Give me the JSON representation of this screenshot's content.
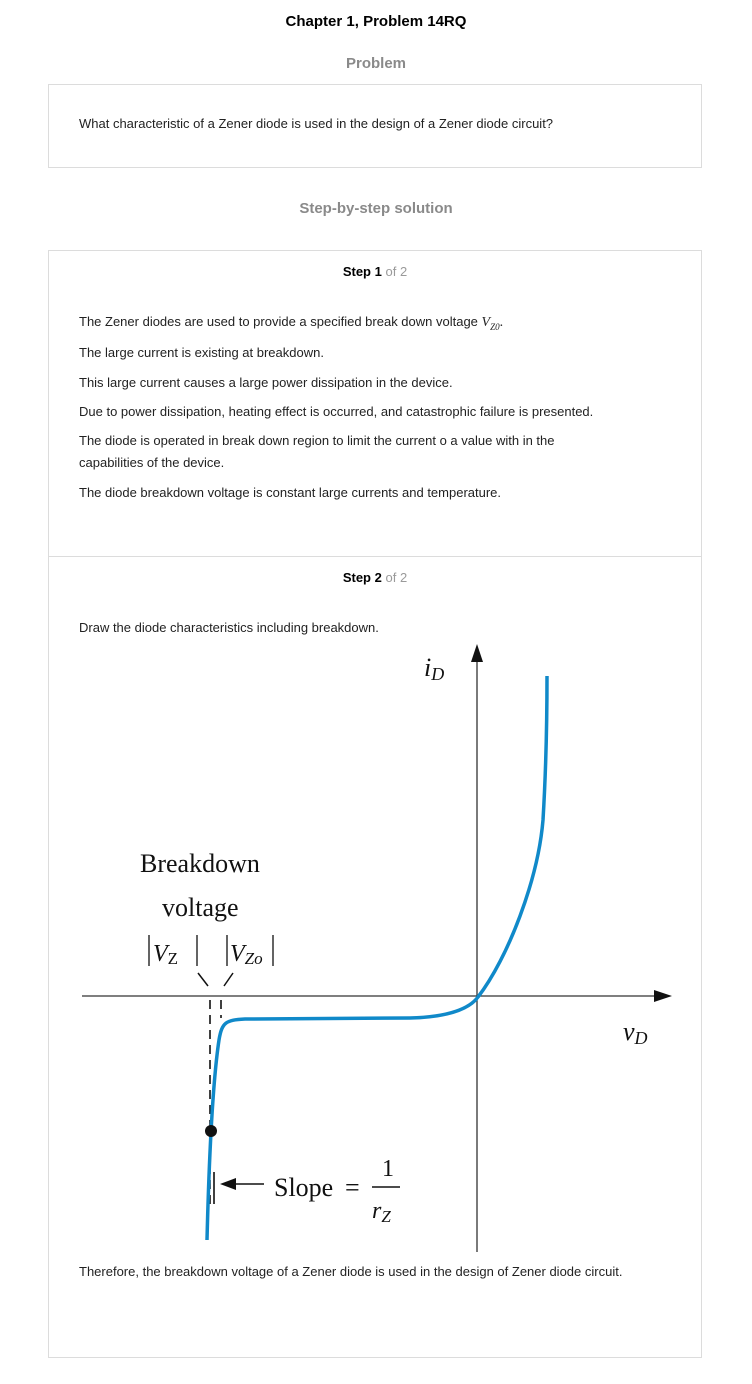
{
  "header": {
    "chapter_title": "Chapter 1, Problem 14RQ",
    "problem_heading": "Problem",
    "solution_heading": "Step-by-step solution"
  },
  "problem": {
    "text": "What characteristic of a Zener diode is used in the design of a Zener diode circuit?"
  },
  "steps": [
    {
      "label": "Step",
      "number": "1",
      "of_text": "of 2",
      "paragraphs": [
        "The Zener diodes are used to provide a specified break down voltage ",
        "The large current is existing at breakdown.",
        "This large current causes a large power dissipation in the device.",
        "Due to power dissipation, heating effect is occurred, and catastrophic failure is presented.",
        "The diode is operated in break down region to limit the current o a value with in the capabilities of the device.",
        "The diode breakdown voltage is constant large currents and temperature."
      ],
      "math_symbol": "V",
      "math_subscript": "Z0",
      "math_trailing": "."
    },
    {
      "label": "Step",
      "number": "2",
      "of_text": "of 2",
      "intro": "Draw the diode characteristics including breakdown.",
      "conclusion": "Therefore, the breakdown voltage of a Zener diode is used in the design of Zener diode circuit."
    }
  ],
  "diagram": {
    "y_axis_label": "i",
    "y_axis_subscript": "D",
    "x_axis_label": "v",
    "x_axis_subscript": "D",
    "breakdown_line1": "Breakdown",
    "breakdown_line2": "voltage",
    "vz_label": "V",
    "vz_subscript": "Z",
    "vzo_label": "V",
    "vzo_subscript": "Zo",
    "slope_label": "Slope",
    "slope_equals": "=",
    "slope_numerator": "1",
    "slope_denominator": "r",
    "slope_denominator_subscript": "Z",
    "curve_color": "#1089c9"
  }
}
